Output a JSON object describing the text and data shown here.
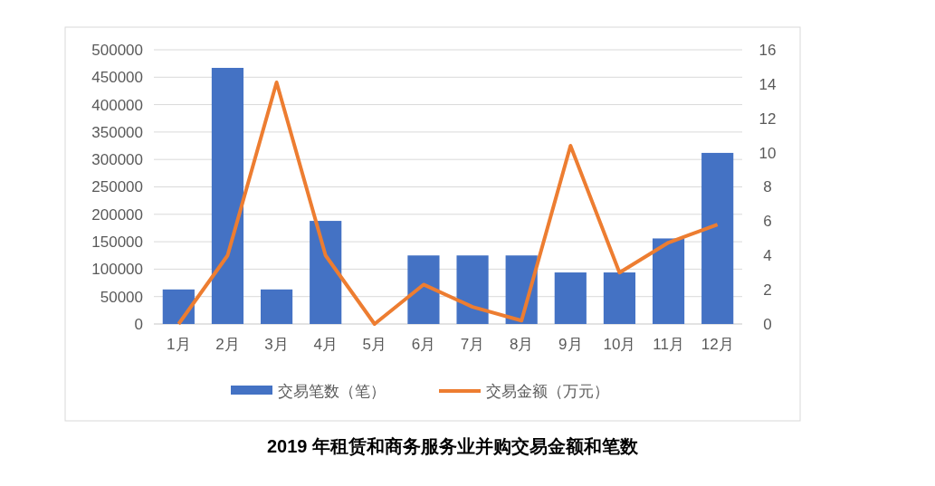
{
  "chart_data": {
    "type": "bar",
    "title": "2019 年租赁和商务服务业并购交易金额和笔数",
    "categories": [
      "1月",
      "2月",
      "3月",
      "4月",
      "5月",
      "6月",
      "7月",
      "8月",
      "9月",
      "10月",
      "11月",
      "12月"
    ],
    "series": [
      {
        "name": "交易笔数（笔）",
        "color": "#4472c4",
        "values": [
          63000,
          467000,
          63000,
          188000,
          0,
          125000,
          125000,
          125000,
          94000,
          94000,
          156000,
          312000
        ]
      },
      {
        "name": "交易金额（万元）",
        "type": "line",
        "axis": "y2",
        "color": "#ed7d31",
        "values": [
          0,
          4.0,
          14.1,
          4.0,
          0,
          2.3,
          1.0,
          0.2,
          10.4,
          3.0,
          4.75,
          5.8
        ]
      }
    ],
    "ylim": [
      0,
      500000
    ],
    "yticks": [
      0,
      50000,
      100000,
      150000,
      200000,
      250000,
      300000,
      350000,
      400000,
      450000,
      500000
    ],
    "y2lim": [
      0,
      16
    ],
    "y2ticks": [
      0,
      2,
      4,
      6,
      8,
      10,
      12,
      14,
      16
    ],
    "grid": "y",
    "legend": "bottom",
    "line_style": "solid",
    "marker": "none"
  }
}
